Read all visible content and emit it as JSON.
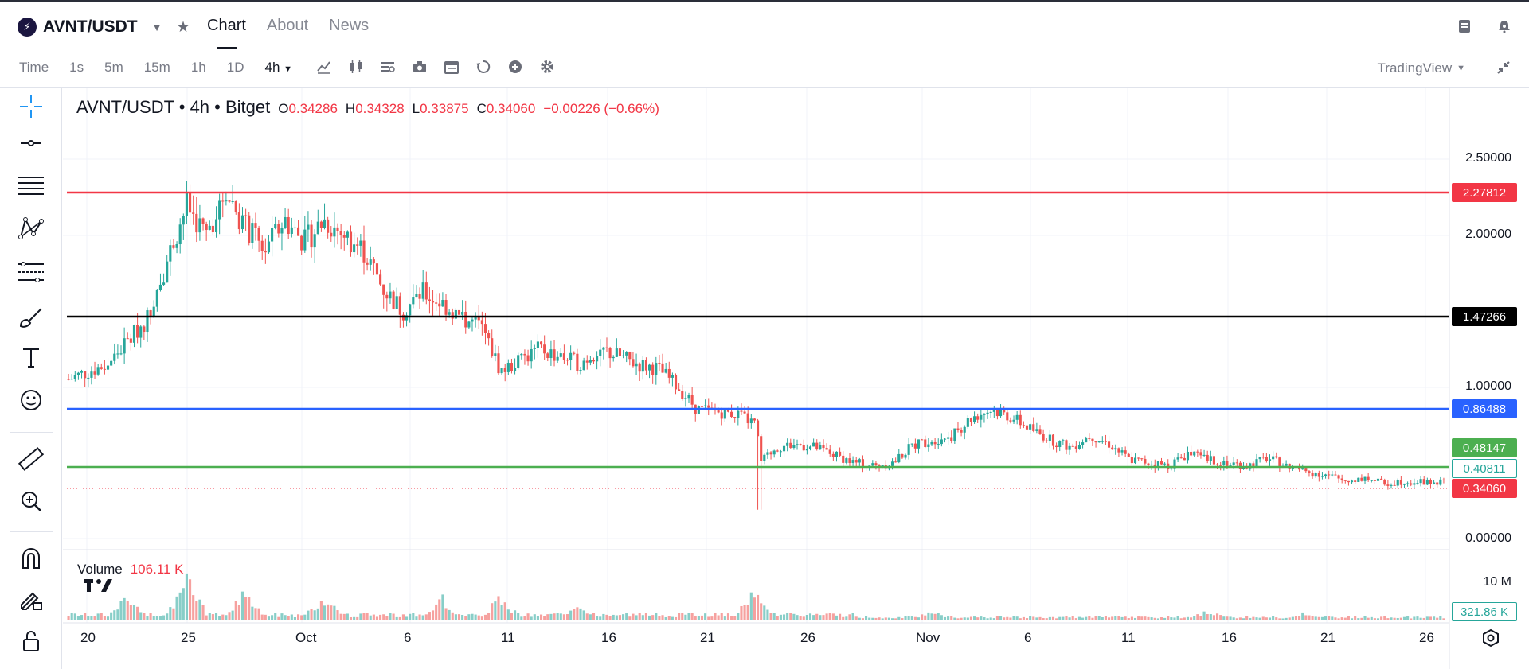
{
  "header": {
    "pair": "AVNT/USDT",
    "tabs": [
      {
        "label": "Chart",
        "active": true
      },
      {
        "label": "About",
        "active": false
      },
      {
        "label": "News",
        "active": false
      }
    ]
  },
  "toolbar": {
    "intervals": [
      {
        "label": "Time",
        "active": false
      },
      {
        "label": "1s",
        "active": false
      },
      {
        "label": "5m",
        "active": false
      },
      {
        "label": "15m",
        "active": false
      },
      {
        "label": "1h",
        "active": false
      },
      {
        "label": "1D",
        "active": false
      },
      {
        "label": "4h",
        "active": true
      }
    ],
    "provider": "TradingView",
    "tool_icons": [
      "indicators-icon",
      "candle-type-icon",
      "templates-icon",
      "camera-icon",
      "calendar-icon",
      "replay-icon",
      "add-icon",
      "settings-icon"
    ]
  },
  "left_tools": [
    "crosshair-icon",
    "trend-line-icon",
    "fib-lines-icon",
    "pattern-icon",
    "projection-icon",
    "brush-icon",
    "text-icon",
    "emoji-icon",
    "ruler-icon",
    "zoom-in-icon",
    "magnet-icon",
    "lock-drawing-icon",
    "lock-icon"
  ],
  "legend": {
    "symbol": "AVNT/USDT • 4h • Bitget",
    "open_label": "O",
    "open": "0.34286",
    "high_label": "H",
    "high": "0.34328",
    "low_label": "L",
    "low": "0.33875",
    "close_label": "C",
    "close": "0.34060",
    "change": "−0.00226 (−0.66%)"
  },
  "volume": {
    "label": "Volume",
    "value": "106.11 K",
    "axis_top": "10 M",
    "current_tag": "321.86 K"
  },
  "price_axis": [
    "2.50000",
    "2.00000",
    "1.00000",
    "0.00000"
  ],
  "time_axis": [
    "20",
    "25",
    "Oct",
    "6",
    "11",
    "16",
    "21",
    "26",
    "Nov",
    "6",
    "11",
    "16",
    "21",
    "26"
  ],
  "colors": {
    "up": "#26a69a",
    "down": "#ef5350",
    "red_line": "#f23645",
    "black_line": "#000000",
    "blue_line": "#2962ff",
    "green_line": "#4caf50"
  },
  "chart_data": {
    "type": "candlestick",
    "title": "AVNT/USDT • 4h • Bitget",
    "ohlc_last": {
      "open": 0.34286,
      "high": 0.34328,
      "low": 0.33875,
      "close": 0.3406
    },
    "ylim": [
      0,
      2.5
    ],
    "horizontal_lines": [
      {
        "value": 2.27812,
        "color": "#f23645",
        "label": "2.27812"
      },
      {
        "value": 1.47266,
        "color": "#000000",
        "label": "1.47266"
      },
      {
        "value": 0.86488,
        "color": "#2962ff",
        "label": "0.86488"
      },
      {
        "value": 0.48147,
        "color": "#4caf50",
        "label": "0.48147"
      }
    ],
    "price_tags": [
      {
        "value": 0.40811,
        "label": "0.40811",
        "style": "outline-green"
      },
      {
        "value": 0.3406,
        "label": "0.34060",
        "style": "red"
      }
    ],
    "path": [
      [
        0,
        1.05
      ],
      [
        2,
        1.15
      ],
      [
        4,
        1.45
      ],
      [
        6,
        2.2
      ],
      [
        7,
        2.0
      ],
      [
        8,
        2.3
      ],
      [
        9,
        2.05
      ],
      [
        10,
        1.9
      ],
      [
        11,
        2.1
      ],
      [
        12,
        1.95
      ],
      [
        13,
        2.1
      ],
      [
        14,
        2.0
      ],
      [
        15,
        1.9
      ],
      [
        16,
        1.65
      ],
      [
        17,
        1.5
      ],
      [
        18,
        1.62
      ],
      [
        19,
        1.55
      ],
      [
        20,
        1.45
      ],
      [
        21,
        1.4
      ],
      [
        22,
        1.1
      ],
      [
        24,
        1.25
      ],
      [
        25,
        1.2
      ],
      [
        26,
        1.15
      ],
      [
        27,
        1.25
      ],
      [
        28,
        1.2
      ],
      [
        29,
        1.15
      ],
      [
        30,
        1.12
      ],
      [
        31,
        1.0
      ],
      [
        32,
        0.85
      ],
      [
        34,
        0.82
      ],
      [
        35,
        0.75
      ],
      [
        35.2,
        0.5
      ],
      [
        36,
        0.6
      ],
      [
        37,
        0.62
      ],
      [
        38,
        0.6
      ],
      [
        39,
        0.55
      ],
      [
        40,
        0.5
      ],
      [
        41,
        0.48
      ],
      [
        42,
        0.5
      ],
      [
        43,
        0.62
      ],
      [
        44,
        0.65
      ],
      [
        45,
        0.68
      ],
      [
        46,
        0.8
      ],
      [
        47,
        0.85
      ],
      [
        48,
        0.8
      ],
      [
        49,
        0.72
      ],
      [
        50,
        0.65
      ],
      [
        51,
        0.6
      ],
      [
        52,
        0.68
      ],
      [
        53,
        0.62
      ],
      [
        54,
        0.52
      ],
      [
        55,
        0.5
      ],
      [
        56,
        0.48
      ],
      [
        57,
        0.56
      ],
      [
        58,
        0.52
      ],
      [
        59,
        0.5
      ],
      [
        60,
        0.48
      ],
      [
        61,
        0.53
      ],
      [
        62,
        0.48
      ],
      [
        63,
        0.44
      ],
      [
        64,
        0.42
      ],
      [
        65,
        0.38
      ],
      [
        66,
        0.4
      ],
      [
        67,
        0.36
      ],
      [
        68,
        0.38
      ],
      [
        69,
        0.37
      ],
      [
        70,
        0.37
      ]
    ],
    "volume_peaks": [
      {
        "x": 3,
        "value": 0.55
      },
      {
        "x": 6,
        "value": 0.95
      },
      {
        "x": 9,
        "value": 0.65
      },
      {
        "x": 13,
        "value": 0.55
      },
      {
        "x": 19,
        "value": 0.5
      },
      {
        "x": 22,
        "value": 0.55
      },
      {
        "x": 26,
        "value": 0.3
      },
      {
        "x": 35,
        "value": 0.75
      },
      {
        "x": 44,
        "value": 0.4
      },
      {
        "x": 58,
        "value": 0.4
      },
      {
        "x": 63,
        "value": 0.35
      }
    ],
    "xlabels": [
      "20",
      "25",
      "Oct",
      "6",
      "11",
      "16",
      "21",
      "26",
      "Nov",
      "6",
      "11",
      "16",
      "21",
      "26"
    ],
    "ylabels": [
      "2.50000",
      "2.00000",
      "1.00000",
      "0.00000"
    ]
  }
}
